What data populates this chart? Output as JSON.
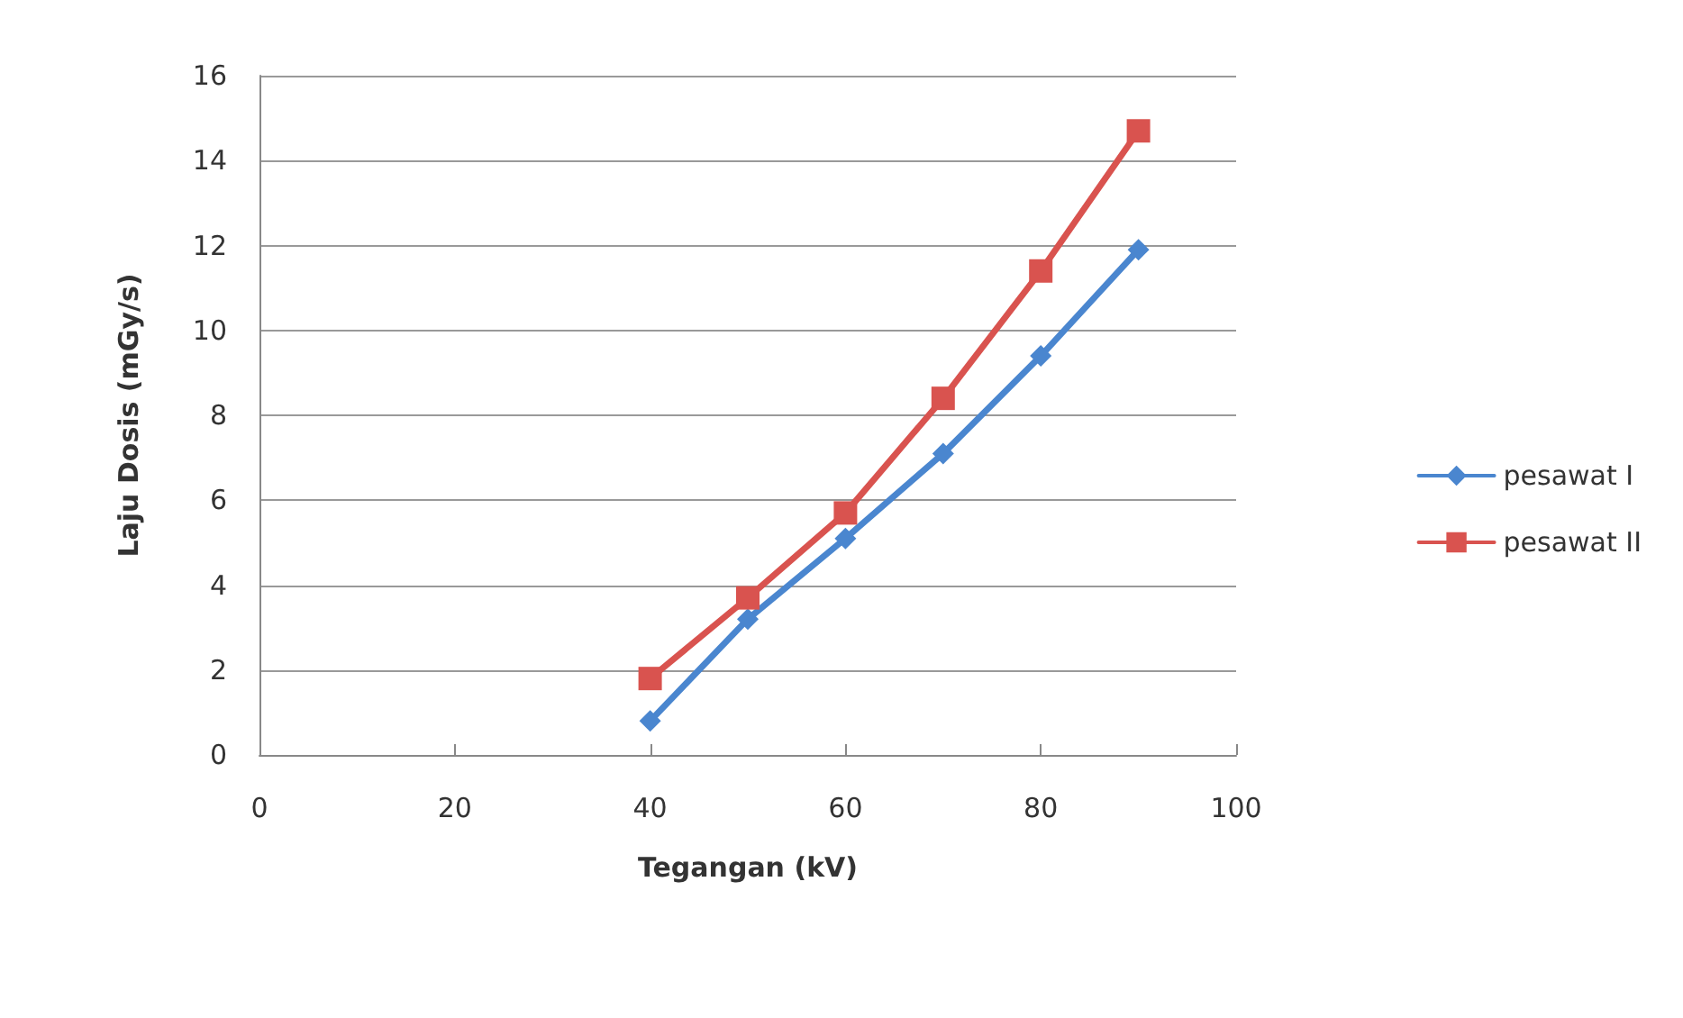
{
  "chart_data": {
    "type": "line",
    "xlabel": "Tegangan (kV)",
    "ylabel": "Laju Dosis (mGy/s)",
    "x": [
      40,
      50,
      60,
      70,
      80,
      90
    ],
    "series": [
      {
        "name": "pesawat I",
        "color": "#4a86cf",
        "marker": "diamond",
        "values": [
          0.8,
          3.2,
          5.1,
          7.1,
          9.4,
          11.9
        ]
      },
      {
        "name": "pesawat II",
        "color": "#d9534f",
        "marker": "square",
        "values": [
          1.8,
          3.7,
          5.7,
          8.4,
          11.4,
          14.7
        ]
      }
    ],
    "xlim": [
      0,
      100
    ],
    "xticks": [
      0,
      20,
      40,
      60,
      80,
      100
    ],
    "ylim": [
      0,
      16
    ],
    "yticks": [
      0,
      2,
      4,
      6,
      8,
      10,
      12,
      14,
      16
    ],
    "grid": "y",
    "legend": "right"
  }
}
